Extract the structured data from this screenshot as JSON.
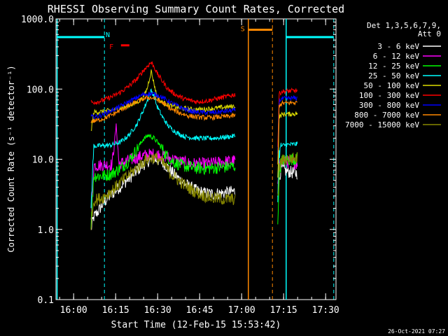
{
  "chart_data": {
    "type": "line",
    "title": "RHESSI Observing Summary Count Rates, Corrected",
    "xlabel": "Start Time (12-Feb-15 15:53:42)",
    "ylabel": "Corrected Count Rate (s⁻¹ detector⁻¹)",
    "x_unit": "minutes after 15:53:42",
    "xlim": [
      0,
      100
    ],
    "ylim": [
      0.1,
      1000
    ],
    "yscale": "log",
    "yticks": [
      {
        "value": 0.1,
        "label": "0.1"
      },
      {
        "value": 1,
        "label": "1.0"
      },
      {
        "value": 10,
        "label": "10.0"
      },
      {
        "value": 100,
        "label": "100.0"
      },
      {
        "value": 1000,
        "label": "1000.0"
      }
    ],
    "xticks": [
      {
        "value": 6.3,
        "label": "16:00"
      },
      {
        "value": 21.3,
        "label": "16:15"
      },
      {
        "value": 36.3,
        "label": "16:30"
      },
      {
        "value": 51.3,
        "label": "16:45"
      },
      {
        "value": 66.3,
        "label": "17:00"
      },
      {
        "value": 81.3,
        "label": "17:15"
      },
      {
        "value": 96.3,
        "label": "17:30"
      }
    ],
    "legend": {
      "position": "right",
      "header": [
        "Det 1,3,5,6,7,9,",
        "Att 0"
      ]
    },
    "series": [
      {
        "name": "3 - 6 keV",
        "color": "#ffffff",
        "segments": [
          {
            "x": [
              12.5,
              13.5,
              15,
              17,
              20,
              23,
              26,
              29,
              31,
              33,
              35,
              37,
              39,
              41,
              44,
              47,
              50,
              53,
              56,
              60,
              64
            ],
            "y": [
              1.0,
              1.5,
              1.8,
              2.4,
              3.2,
              4.1,
              5.3,
              6.9,
              8.3,
              9.5,
              10,
              9.6,
              8.4,
              6.8,
              5.2,
              4.2,
              3.6,
              3.3,
              3.2,
              3.3,
              3.5
            ]
          },
          {
            "x": [
              79.2,
              79.7,
              80.5,
              82,
              84,
              86.2
            ],
            "y": [
              3.5,
              5.5,
              7.5,
              6.8,
              6.5,
              6.3
            ]
          }
        ]
      },
      {
        "name": "6 - 12 keV",
        "color": "#ff00ff",
        "segments": [
          {
            "x": [
              12.5,
              13.5,
              15,
              17,
              20,
              21.5,
              22.5,
              24,
              26,
              29,
              31,
              33,
              35,
              37,
              39,
              41,
              44,
              47,
              50,
              53,
              56,
              60,
              64
            ],
            "y": [
              1.2,
              8.2,
              8.2,
              8.3,
              8.4,
              30,
              8.6,
              9.0,
              9.6,
              10.5,
              11.2,
              11.6,
              11.8,
              11.6,
              11.0,
              10.2,
              9.4,
              8.8,
              8.6,
              8.6,
              8.8,
              9.2,
              9.6
            ]
          },
          {
            "x": [
              79.2,
              79.7,
              80.5,
              82,
              84,
              86.2
            ],
            "y": [
              4,
              8.5,
              9.5,
              9.2,
              9.0,
              8.8
            ]
          }
        ]
      },
      {
        "name": "12 - 25 keV",
        "color": "#00ff00",
        "segments": [
          {
            "x": [
              12.5,
              13.5,
              15,
              17,
              20,
              23,
              26,
              29,
              31,
              33,
              35,
              37,
              39,
              41,
              44,
              47,
              50,
              53,
              56,
              60,
              64
            ],
            "y": [
              1.2,
              5.8,
              5.8,
              5.8,
              6.2,
              7.5,
              9.5,
              14,
              19,
              22,
              20,
              16,
              12,
              9.6,
              8.4,
              7.8,
              7.5,
              7.4,
              7.5,
              7.7,
              8.0
            ]
          },
          {
            "x": [
              79.2,
              79.7,
              80.5,
              82,
              84,
              86.2
            ],
            "y": [
              1.0,
              6.0,
              9.5,
              9.8,
              10.0,
              10.2
            ]
          }
        ]
      },
      {
        "name": "25 - 50 keV",
        "color": "#00ffff",
        "segments": [
          {
            "x": [
              12.5,
              13.5,
              15,
              17,
              20,
              23,
              26,
              29,
              31,
              33,
              34,
              35,
              36,
              38,
              40,
              43,
              46,
              50,
              54,
              58,
              62,
              64
            ],
            "y": [
              2.2,
              15.5,
              15.5,
              15.6,
              16,
              17.5,
              22,
              32,
              48,
              75,
              95,
              80,
              58,
              40,
              30,
              24,
              21,
              20,
              19.8,
              20.2,
              21,
              21.5
            ]
          },
          {
            "x": [
              79.2,
              79.7,
              80.5,
              82,
              84,
              86.2
            ],
            "y": [
              3.0,
              12,
              15.5,
              16,
              16.2,
              16.5
            ]
          }
        ]
      },
      {
        "name": "50 - 100 keV",
        "color": "#dddd00",
        "segments": [
          {
            "x": [
              12.5,
              13.5,
              15,
              17,
              20,
              23,
              26,
              29,
              31,
              32.5,
              34,
              35,
              36,
              37,
              39,
              41,
              44,
              47,
              50,
              54,
              58,
              62,
              64
            ],
            "y": [
              25,
              47,
              47,
              48,
              50,
              53,
              58,
              65,
              75,
              100,
              180,
              120,
              80,
              68,
              62,
              58,
              54,
              52,
              51,
              52,
              54,
              56,
              57
            ]
          },
          {
            "x": [
              79.2,
              79.7,
              80.5,
              82,
              84,
              86.2
            ],
            "y": [
              5,
              40,
              43,
              44,
              44,
              45
            ]
          }
        ]
      },
      {
        "name": "100 - 300 keV",
        "color": "#ff0000",
        "segments": [
          {
            "x": [
              12.5,
              13.5,
              15,
              17,
              20,
              23,
              26,
              29,
              31,
              33,
              34,
              35,
              36,
              38,
              40,
              43,
              46,
              50,
              54,
              58,
              62,
              64
            ],
            "y": [
              65,
              65,
              66,
              70,
              78,
              90,
              110,
              140,
              180,
              220,
              240,
              210,
              170,
              130,
              100,
              82,
              72,
              66,
              68,
              74,
              80,
              84
            ]
          },
          {
            "x": [
              79.2,
              79.7,
              80.5,
              82,
              84,
              86.2
            ],
            "y": [
              15,
              85,
              92,
              93,
              94,
              95
            ]
          }
        ]
      },
      {
        "name": "300 - 800 keV",
        "color": "#0000ff",
        "segments": [
          {
            "x": [
              12.5,
              13.5,
              15,
              17,
              20,
              23,
              26,
              29,
              31,
              33,
              35,
              37,
              39,
              41,
              44,
              47,
              50,
              54,
              58,
              62,
              64
            ],
            "y": [
              40,
              40,
              41,
              44,
              50,
              57,
              66,
              76,
              83,
              86,
              85,
              80,
              72,
              64,
              56,
              50,
              47,
              46,
              47,
              49,
              50
            ]
          },
          {
            "x": [
              79.2,
              79.7,
              80.5,
              82,
              84,
              86.2
            ],
            "y": [
              10,
              68,
              72,
              73,
              74,
              74
            ]
          }
        ]
      },
      {
        "name": "800 - 7000 keV",
        "color": "#ff8800",
        "segments": [
          {
            "x": [
              12.5,
              13.5,
              15,
              17,
              20,
              23,
              26,
              29,
              31,
              33,
              35,
              37,
              39,
              41,
              44,
              47,
              50,
              54,
              58,
              62,
              64
            ],
            "y": [
              35,
              35,
              36,
              38,
              43,
              50,
              58,
              66,
              72,
              76,
              74,
              68,
              60,
              52,
              46,
              42,
              40,
              39,
              40,
              41,
              42
            ]
          },
          {
            "x": [
              79.2,
              79.7,
              80.5,
              82,
              84,
              86.2
            ],
            "y": [
              8,
              58,
              62,
              63,
              64,
              64
            ]
          }
        ]
      },
      {
        "name": "7000 - 15000 keV",
        "color": "#888800",
        "segments": [
          {
            "x": [
              12.5,
              13.5,
              15,
              17,
              20,
              23,
              26,
              29,
              31,
              33,
              35,
              37,
              39,
              41,
              44,
              47,
              50,
              53,
              56,
              60,
              64
            ],
            "y": [
              1.2,
              2.6,
              2.7,
              2.9,
              3.6,
              4.6,
              6.0,
              7.6,
              9.0,
              10.2,
              10.6,
              9.8,
              8.0,
              6.2,
              4.9,
              4.0,
              3.4,
              3.0,
              2.8,
              2.7,
              2.7
            ]
          },
          {
            "x": [
              79.2,
              79.7,
              80.5,
              82,
              84,
              86.2
            ],
            "y": [
              2.5,
              7.5,
              9.5,
              10,
              10.2,
              10.5
            ]
          }
        ]
      }
    ],
    "annotations": [
      {
        "type": "vline",
        "x": 0.4,
        "color": "#00ffff",
        "style": "solid"
      },
      {
        "type": "vline",
        "x": 17.3,
        "color": "#00ffff",
        "style": "dashed"
      },
      {
        "type": "vline",
        "x": 82.2,
        "color": "#00ffff",
        "style": "solid"
      },
      {
        "type": "vline",
        "x": 99.2,
        "color": "#00ffff",
        "style": "dashed"
      },
      {
        "type": "vline",
        "x": 68.7,
        "color": "#ff8800",
        "style": "solid"
      },
      {
        "type": "vline",
        "x": 77.3,
        "color": "#ff8800",
        "style": "dashed"
      },
      {
        "type": "hbar",
        "x0": 0.4,
        "x1": 17.3,
        "y": 550,
        "color": "#00ffff"
      },
      {
        "type": "hbar",
        "x0": 82.2,
        "x1": 99.2,
        "y": 550,
        "color": "#00ffff"
      },
      {
        "type": "hbar",
        "x0": 68.7,
        "x1": 77.3,
        "y": 700,
        "color": "#ff8800"
      },
      {
        "type": "hbar",
        "x0": 23.2,
        "x1": 26.2,
        "y": 420,
        "color": "#ff0000"
      },
      {
        "type": "label",
        "text": "N",
        "x": 18.5,
        "y": 600,
        "color": "#00ffff"
      },
      {
        "type": "label",
        "text": "F",
        "x": 19.8,
        "y": 410,
        "color": "#ff0000"
      },
      {
        "type": "label",
        "text": "S",
        "x": 66.7,
        "y": 730,
        "color": "#ff8800"
      }
    ]
  },
  "footer": {
    "timestamp": "26-Oct-2021 07:27"
  }
}
